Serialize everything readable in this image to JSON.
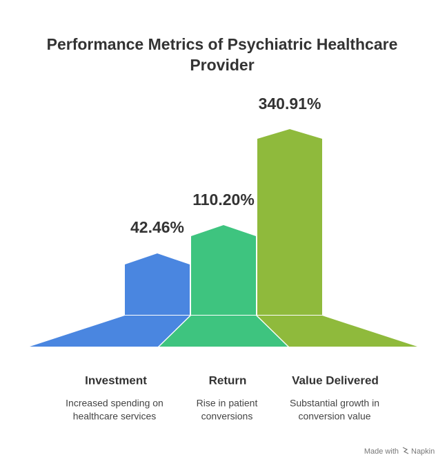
{
  "title": [
    "Performance Metrics of Psychiatric Healthcare",
    "Provider"
  ],
  "items": [
    {
      "value": "42.46%",
      "label": "Investment",
      "description": [
        "Increased spending on",
        "healthcare services"
      ]
    },
    {
      "value": "110.20%",
      "label": "Return",
      "description": [
        "Rise in patient",
        "conversions"
      ]
    },
    {
      "value": "340.91%",
      "label": "Value Delivered",
      "description": [
        "Substantial growth in",
        "conversion value"
      ]
    }
  ],
  "footer": {
    "prefix": "Made with",
    "brand": "Napkin"
  }
}
